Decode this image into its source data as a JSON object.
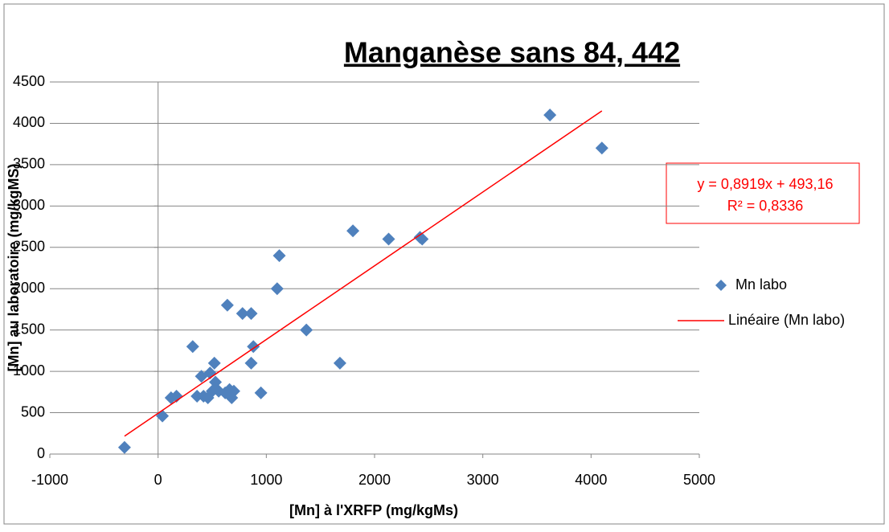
{
  "chart_data": {
    "type": "scatter",
    "title": "Manganèse sans 84, 442",
    "x_label": "[Mn] à l'XRFP (mg/kgMs)",
    "y_label": "[Mn] au laboratoire (mg/kgMS)",
    "xlim": [
      -1000,
      5000
    ],
    "xticks": [
      -1000,
      0,
      1000,
      2000,
      3000,
      4000,
      5000
    ],
    "ylim": [
      0,
      4500
    ],
    "yticks": [
      0,
      500,
      1000,
      1500,
      2000,
      2500,
      3000,
      3500,
      4000,
      4500
    ],
    "grid": true,
    "legend": "right",
    "series": [
      {
        "name": "Mn labo",
        "color": "#4f81bd",
        "x": [
          -310,
          40,
          120,
          170,
          320,
          360,
          400,
          420,
          460,
          480,
          500,
          520,
          530,
          560,
          620,
          640,
          660,
          680,
          700,
          780,
          860,
          860,
          880,
          950,
          1100,
          1120,
          1370,
          1680,
          1800,
          2130,
          2420,
          2440,
          3620,
          4100
        ],
        "values": [
          80,
          460,
          680,
          700,
          1300,
          700,
          940,
          700,
          680,
          980,
          760,
          1100,
          870,
          760,
          740,
          1800,
          780,
          680,
          760,
          1700,
          1700,
          1100,
          1300,
          740,
          2000,
          2400,
          1500,
          1100,
          2700,
          2600,
          2620,
          2600,
          4100,
          3700
        ]
      }
    ],
    "trendline": {
      "name": "Linéaire (Mn labo)",
      "color": "#ff0000",
      "slope": 0.8919,
      "intercept": 493.16,
      "equation": "y = 0,8919x + 493,16",
      "r2": "R² = 0,8336"
    }
  }
}
